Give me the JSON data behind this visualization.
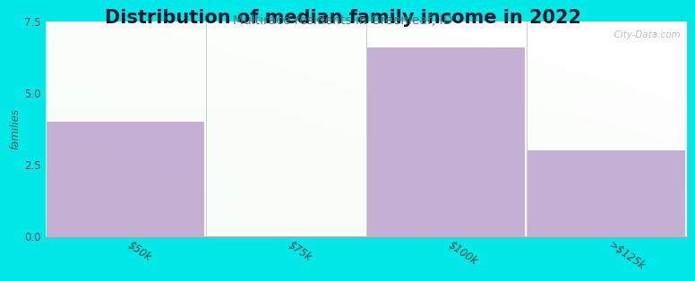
{
  "title": "Distribution of median family income in 2022",
  "subtitle": "Multirace residents in Greenleaf, ID",
  "categories": [
    "$50k",
    "$75k",
    "$100k",
    ">$125k"
  ],
  "values": [
    4.0,
    0.0,
    6.6,
    3.0
  ],
  "bar_color": "#b89fcc",
  "background_color": "#00e8e8",
  "ylabel": "families",
  "ylim": [
    0,
    7.5
  ],
  "yticks": [
    0,
    2.5,
    5,
    7.5
  ],
  "title_fontsize": 15,
  "subtitle_fontsize": 10,
  "title_color": "#1a1a2e",
  "subtitle_color": "#4a7a7a",
  "watermark": "  City-Data.com"
}
